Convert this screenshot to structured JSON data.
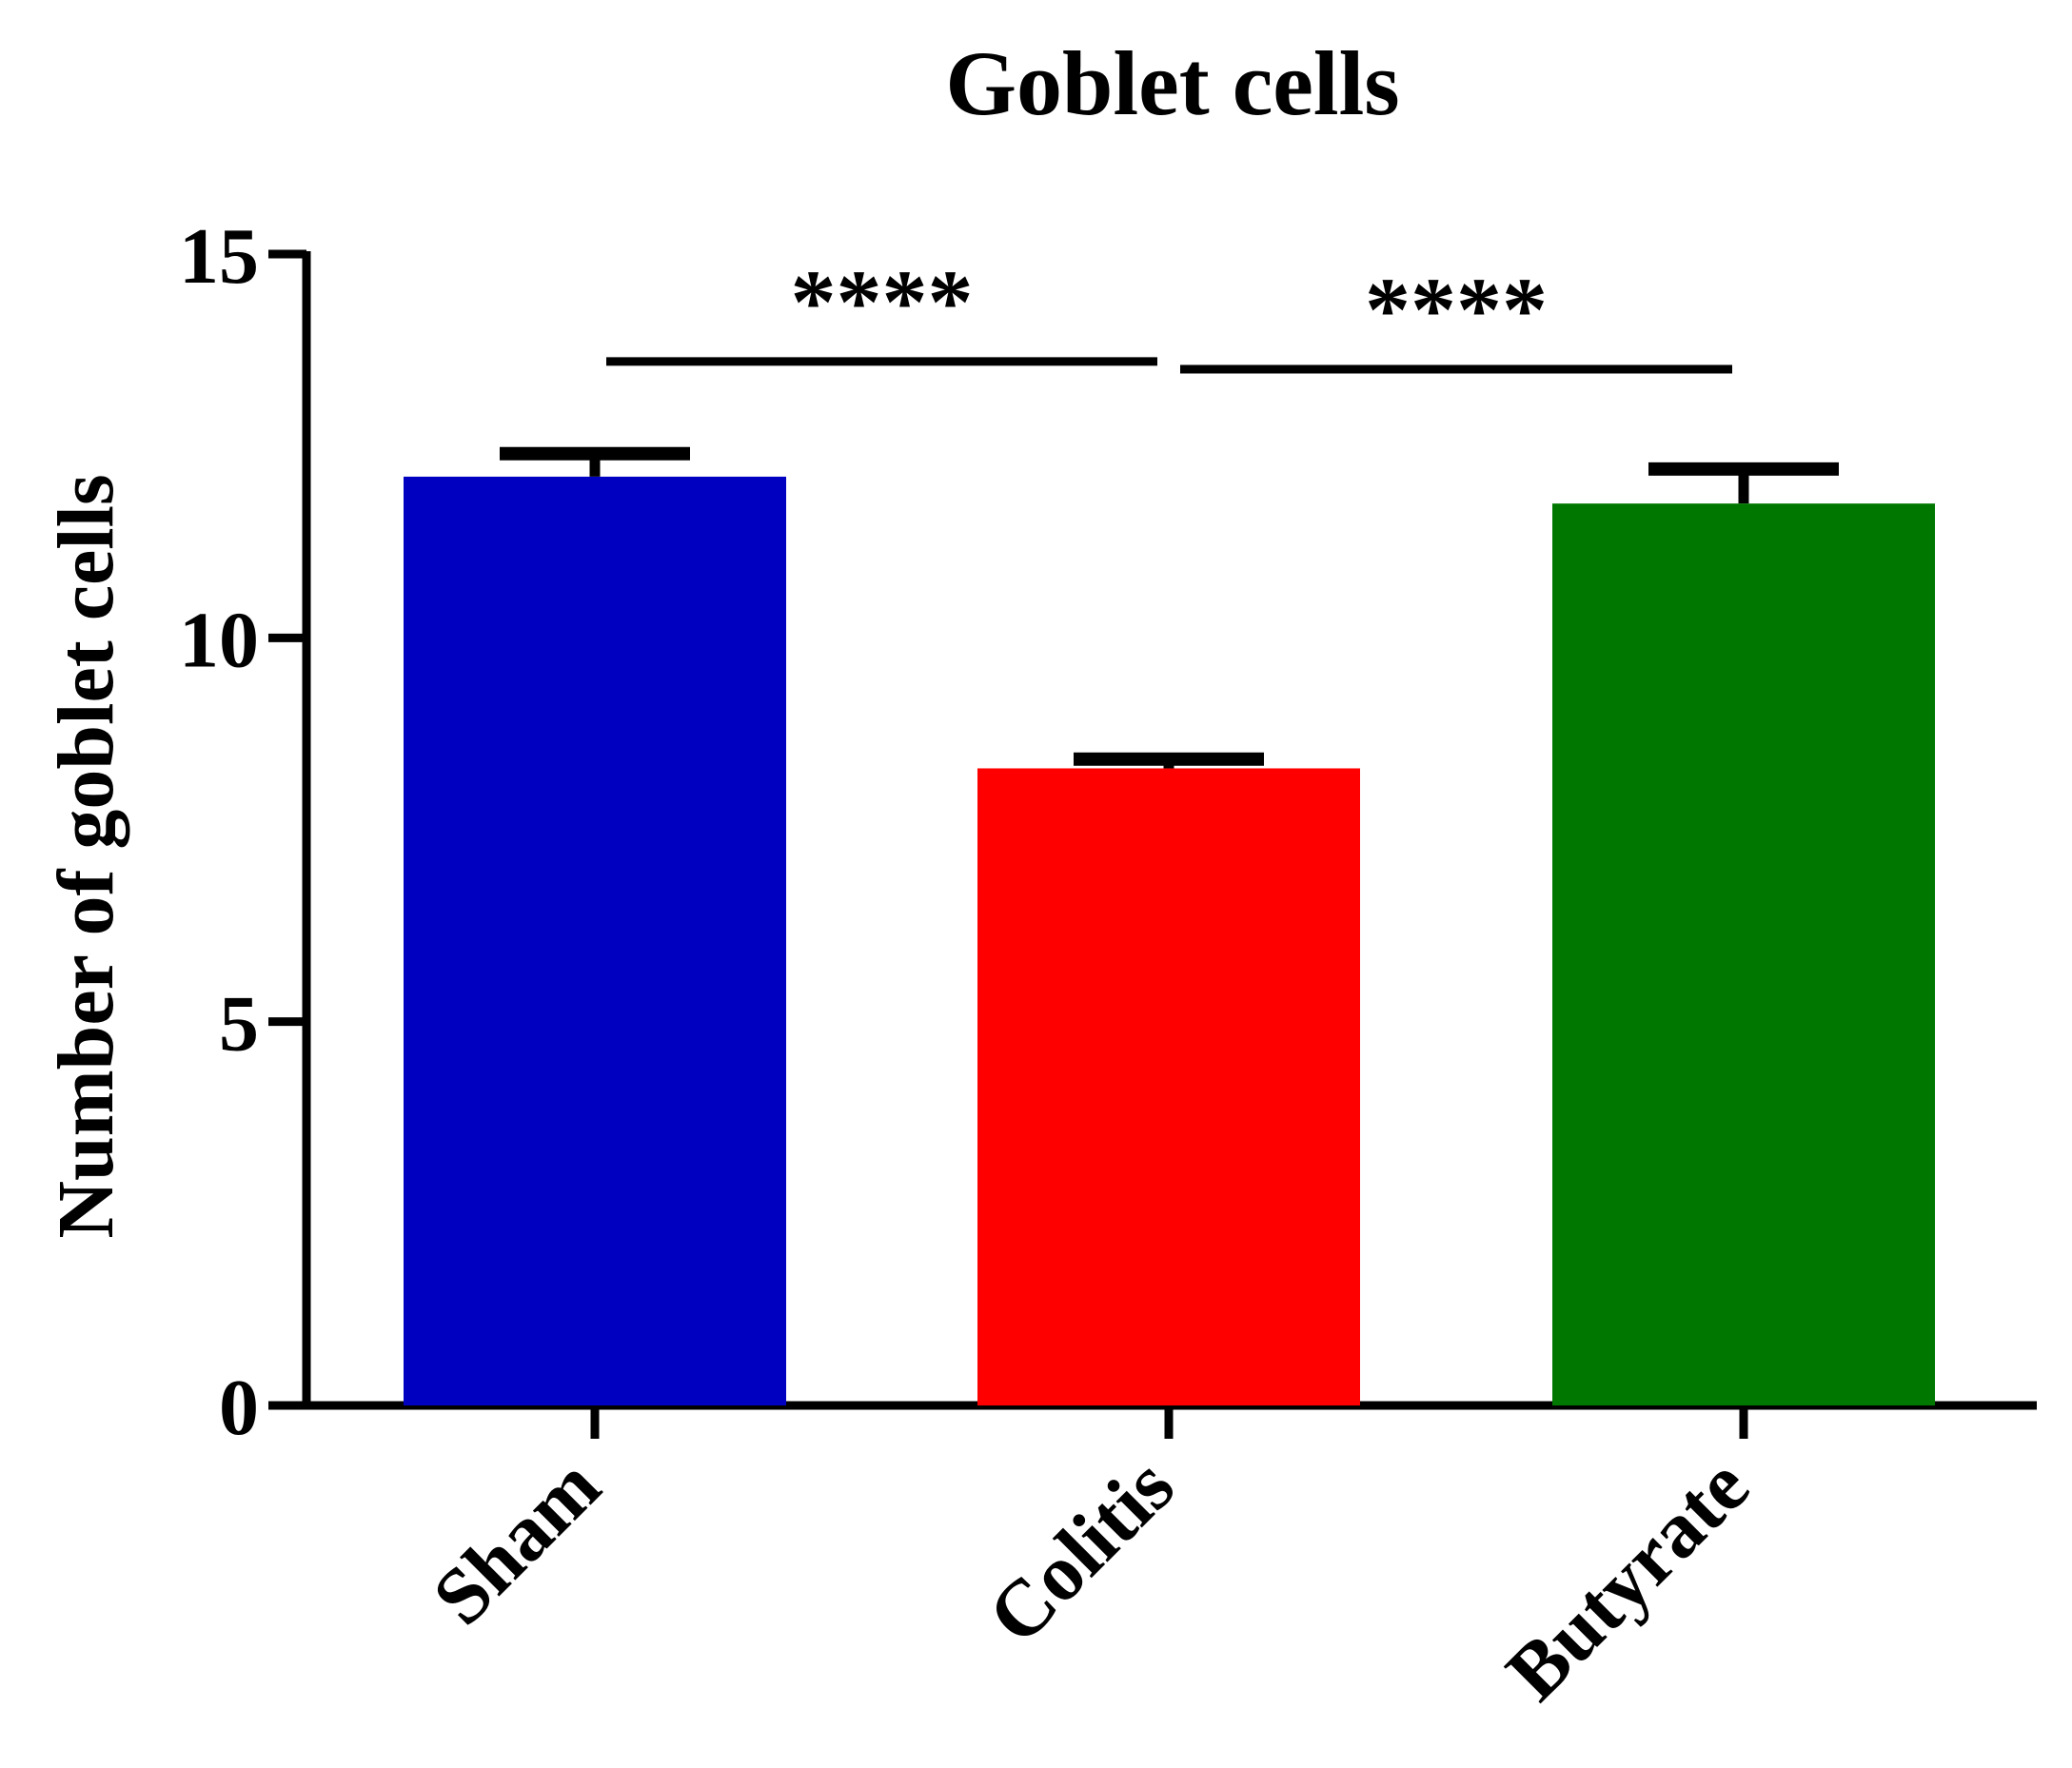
{
  "chart_data": {
    "type": "bar",
    "title": "Goblet cells",
    "xlabel": "",
    "ylabel": "Number of goblet cells",
    "ylim": [
      0,
      15
    ],
    "yticks": [
      0,
      5,
      10,
      15
    ],
    "categories": [
      "Sham",
      "Colitis",
      "Butyrate"
    ],
    "values": [
      12.1,
      8.3,
      11.75
    ],
    "errors": [
      0.3,
      0.12,
      0.45
    ],
    "colors": [
      "#0000C0",
      "#FF0000",
      "#007800"
    ],
    "grid": false,
    "legend": "none",
    "significance": [
      {
        "from": "Sham",
        "to": "Colitis",
        "label": "****",
        "y": 13.6
      },
      {
        "from": "Colitis",
        "to": "Butyrate",
        "label": "****",
        "y": 13.5
      }
    ]
  }
}
